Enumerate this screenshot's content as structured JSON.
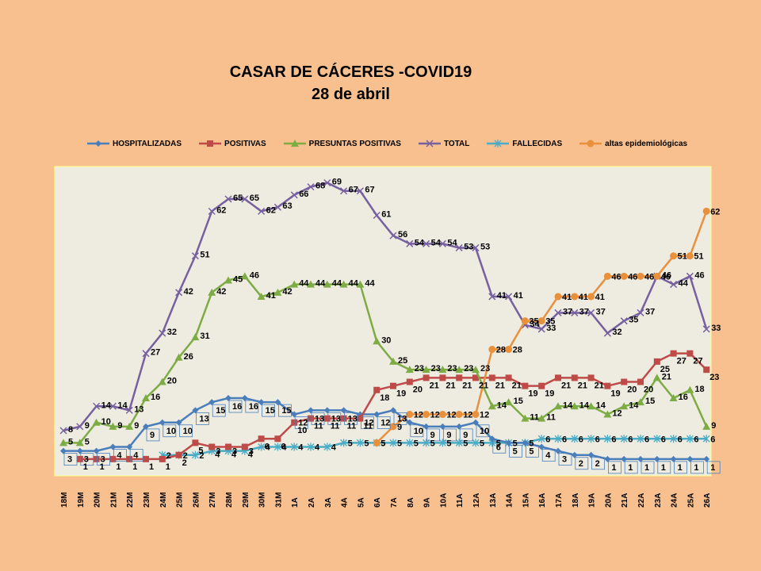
{
  "chart_data": {
    "type": "line",
    "title": "CASAR DE CÁCERES -COVID19",
    "subtitle": "28 de abril",
    "xlabel": "",
    "ylabel": "",
    "ylim": [
      0,
      73
    ],
    "grid": false,
    "legend_position": "top",
    "categories": [
      "18M",
      "19M",
      "20M",
      "21M",
      "22M",
      "23M",
      "24M",
      "25M",
      "26M",
      "27M",
      "28M",
      "29M",
      "30M",
      "31M",
      "1A",
      "2A",
      "3A",
      "4A",
      "5A",
      "6A",
      "7A",
      "8A",
      "9A",
      "10A",
      "11A",
      "12A",
      "13A",
      "14A",
      "15A",
      "16A",
      "17A",
      "18A",
      "19A",
      "20A",
      "21A",
      "22A",
      "23A",
      "24A",
      "25A",
      "26A"
    ],
    "series": [
      {
        "name": "HOSPITALIZADAS",
        "color": "#4a7ebb",
        "marker": "diamond",
        "values": [
          3,
          3,
          3,
          4,
          4,
          9,
          10,
          10,
          13,
          15,
          16,
          16,
          15,
          15,
          12,
          13,
          13,
          13,
          12,
          12,
          13,
          10,
          9,
          9,
          9,
          10,
          6,
          5,
          5,
          4,
          3,
          2,
          2,
          1,
          1,
          1,
          1,
          1,
          1,
          1
        ]
      },
      {
        "name": "POSITIVAS",
        "color": "#be4b48",
        "marker": "square",
        "values": [
          null,
          1,
          1,
          1,
          1,
          1,
          1,
          2,
          5,
          4,
          4,
          4,
          6,
          6,
          10,
          11,
          11,
          11,
          11,
          18,
          19,
          20,
          21,
          21,
          21,
          21,
          21,
          21,
          19,
          19,
          21,
          21,
          21,
          19,
          20,
          20,
          25,
          27,
          27,
          23
        ]
      },
      {
        "name": "PRESUNTAS POSITIVAS",
        "color": "#7eac44",
        "marker": "triangle",
        "values": [
          5,
          5,
          10,
          9,
          9,
          16,
          20,
          26,
          31,
          42,
          45,
          46,
          41,
          42,
          44,
          44,
          44,
          44,
          44,
          30,
          25,
          23,
          23,
          23,
          23,
          23,
          14,
          15,
          11,
          11,
          14,
          14,
          14,
          12,
          14,
          15,
          21,
          16,
          18,
          9
        ]
      },
      {
        "name": "TOTAL",
        "color": "#7760a0",
        "marker": "x",
        "values": [
          8,
          9,
          14,
          14,
          13,
          27,
          32,
          42,
          51,
          62,
          65,
          65,
          62,
          63,
          66,
          68,
          69,
          67,
          67,
          61,
          56,
          54,
          54,
          54,
          53,
          53,
          41,
          41,
          34,
          33,
          37,
          37,
          37,
          32,
          35,
          37,
          46,
          44,
          46,
          33
        ]
      },
      {
        "name": "FALLECIDAS",
        "color": "#4bacc6",
        "marker": "star",
        "values": [
          null,
          null,
          null,
          null,
          null,
          null,
          2,
          2,
          2,
          3,
          3,
          3,
          4,
          4,
          4,
          4,
          4,
          5,
          5,
          5,
          5,
          5,
          5,
          5,
          5,
          5,
          5,
          5,
          5,
          6,
          6,
          6,
          6,
          6,
          6,
          6,
          6,
          6,
          6,
          6
        ]
      },
      {
        "name": "altas epidemiológicas",
        "color": "#e8903c",
        "marker": "circle",
        "values": [
          null,
          null,
          null,
          null,
          null,
          null,
          null,
          null,
          null,
          null,
          null,
          null,
          null,
          null,
          null,
          null,
          null,
          null,
          null,
          5,
          9,
          12,
          12,
          12,
          12,
          12,
          28,
          28,
          35,
          35,
          41,
          41,
          41,
          46,
          46,
          46,
          46,
          51,
          51,
          62
        ]
      }
    ],
    "labels": [
      {
        "series": 0,
        "values": [
          3,
          3,
          3,
          4,
          4,
          9,
          10,
          10,
          13,
          15,
          16,
          16,
          15,
          15,
          12,
          13,
          13,
          13,
          12,
          12,
          13,
          10,
          9,
          9,
          9,
          10,
          6,
          5,
          5,
          4,
          3,
          2,
          2,
          1,
          1,
          1,
          1,
          1,
          1,
          1
        ]
      },
      {
        "series": 1,
        "values": [
          null,
          1,
          1,
          1,
          1,
          1,
          1,
          2,
          5,
          4,
          4,
          4,
          6,
          6,
          10,
          11,
          11,
          11,
          11,
          18,
          19,
          20,
          21,
          21,
          21,
          21,
          21,
          21,
          19,
          19,
          21,
          21,
          21,
          19,
          20,
          20,
          25,
          27,
          27,
          23
        ]
      },
      {
        "series": 2,
        "values": [
          5,
          5,
          10,
          9,
          9,
          16,
          20,
          26,
          31,
          42,
          45,
          46,
          41,
          42,
          44,
          44,
          44,
          44,
          44,
          30,
          25,
          23,
          23,
          23,
          23,
          23,
          14,
          15,
          11,
          11,
          14,
          14,
          14,
          12,
          14,
          15,
          21,
          16,
          18,
          9
        ]
      },
      {
        "series": 3,
        "values": [
          8,
          9,
          14,
          14,
          13,
          27,
          32,
          42,
          51,
          62,
          65,
          65,
          62,
          63,
          66,
          68,
          69,
          67,
          67,
          61,
          56,
          54,
          54,
          54,
          53,
          53,
          41,
          41,
          34,
          33,
          37,
          37,
          37,
          32,
          35,
          37,
          46,
          44,
          46,
          33
        ]
      },
      {
        "series": 4,
        "values": [
          null,
          null,
          null,
          null,
          null,
          null,
          2,
          2,
          2,
          3,
          3,
          3,
          4,
          4,
          4,
          4,
          4,
          5,
          5,
          5,
          5,
          5,
          5,
          5,
          5,
          5,
          5,
          5,
          5,
          6,
          6,
          6,
          6,
          6,
          6,
          6,
          6,
          6,
          6,
          6
        ]
      },
      {
        "series": 5,
        "values": [
          null,
          null,
          null,
          null,
          null,
          null,
          null,
          null,
          null,
          null,
          null,
          null,
          null,
          null,
          null,
          null,
          null,
          null,
          null,
          5,
          9,
          12,
          12,
          12,
          12,
          12,
          28,
          28,
          35,
          35,
          41,
          41,
          41,
          46,
          46,
          46,
          46,
          51,
          51,
          62
        ]
      }
    ],
    "boxed_label_series": 0
  }
}
